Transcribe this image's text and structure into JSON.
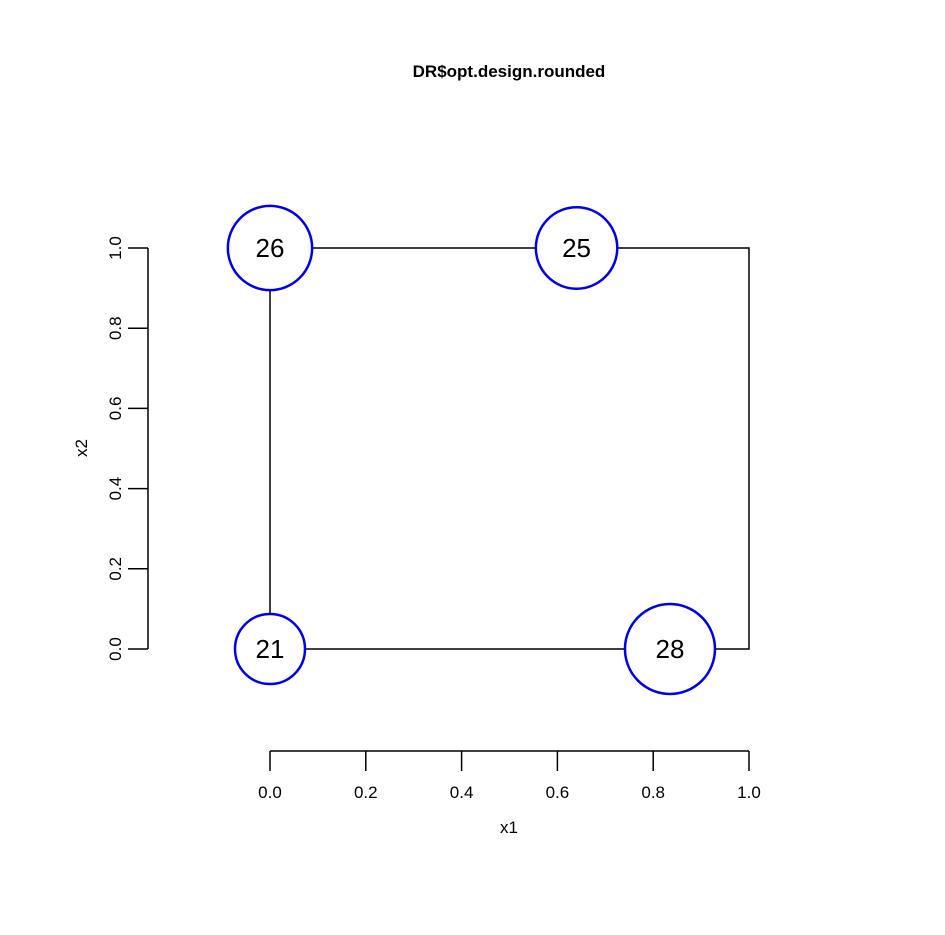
{
  "chart_data": {
    "type": "scatter",
    "title": "DR$opt.design.rounded",
    "xlabel": "x1",
    "ylabel": "x2",
    "xlim": [
      0,
      1
    ],
    "ylim": [
      0,
      1
    ],
    "x_ticks": [
      "0.0",
      "0.2",
      "0.4",
      "0.6",
      "0.8",
      "1.0"
    ],
    "y_ticks": [
      "0.0",
      "0.2",
      "0.4",
      "0.6",
      "0.8",
      "1.0"
    ],
    "grid": false,
    "point_color": "#0000ee",
    "points": [
      {
        "x": 0.0,
        "y": 0.0,
        "weight": 21,
        "label": "21"
      },
      {
        "x": 0.0,
        "y": 1.0,
        "weight": 26,
        "label": "26"
      },
      {
        "x": 0.64,
        "y": 1.0,
        "weight": 25,
        "label": "25"
      },
      {
        "x": 0.835,
        "y": 0.0,
        "weight": 28,
        "label": "28"
      }
    ],
    "region_boundary": [
      {
        "x": 0.0,
        "y": 0.0
      },
      {
        "x": 0.0,
        "y": 1.0
      },
      {
        "x": 1.0,
        "y": 1.0
      },
      {
        "x": 1.0,
        "y": 0.0
      },
      {
        "x": 0.0,
        "y": 0.0
      }
    ]
  }
}
